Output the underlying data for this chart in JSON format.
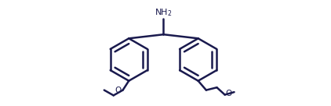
{
  "line_color": "#1a1a4e",
  "bg_color": "#ffffff",
  "line_width": 1.8,
  "figsize": [
    4.22,
    1.36
  ],
  "dpi": 100
}
